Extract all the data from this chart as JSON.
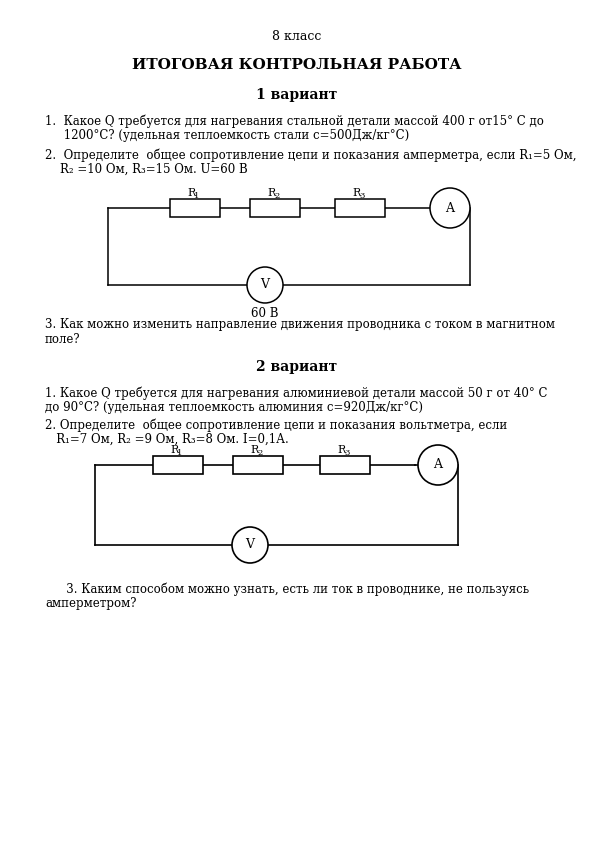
{
  "bg_color": "#ffffff",
  "title_grade": "8 класс",
  "title_main": "ИТОГОВАЯ КОНТРОЛЬНАЯ РАБОТА",
  "variant1_title": "1 вариант",
  "v1_q1_a": "1.  Какое Q требуется для нагревания стальной детали массой 400 г от15° С до",
  "v1_q1_b": "     1200°С? (удельная теплоемкость стали с=500Дж/кг°С)",
  "v1_q2_a": "2.  Определите  общее сопротивление цепи и показания амперметра, если R₁=5 Ом,",
  "v1_q2_b": "    R₂ =10 Ом, R₃=15 Ом. U=60 В",
  "v1_60v": "60 В",
  "v1_q3_a": "3. Как можно изменить направление движения проводника с током в магнитном",
  "v1_q3_b": "поле?",
  "variant2_title": "2 вариант",
  "v2_q1_a": "1. Какое Q требуется для нагревания алюминиевой детали массой 50 г от 40° С",
  "v2_q1_b": "до 90°С? (удельная теплоемкость алюминия с=920Дж/кг°С)",
  "v2_q2_a": "2. Определите  общее сопротивление цепи и показания вольтметра, если",
  "v2_q2_b": "   R₁=7 Ом, R₂ =9 Ом, R₃=8 Ом. I=0,1А.",
  "v2_q3_a": "   3. Каким способом можно узнать, есть ли ток в проводнике, не пользуясь",
  "v2_q3_b": "амперметром?"
}
